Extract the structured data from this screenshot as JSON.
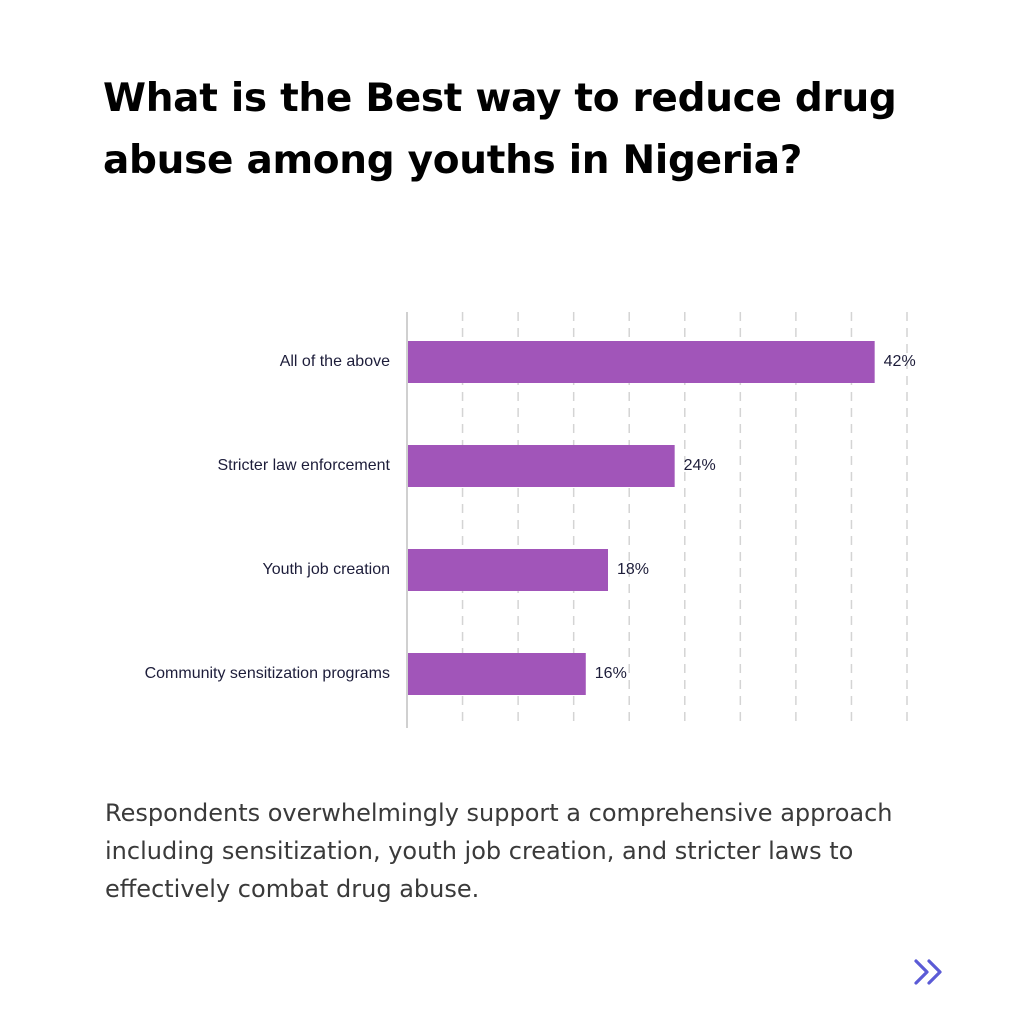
{
  "header": {
    "title": "What is the Best way to reduce drug abuse among youths in Nigeria?"
  },
  "chart_data": {
    "type": "bar",
    "orientation": "horizontal",
    "categories": [
      "All of the above",
      "Stricter law enforcement",
      "Youth job creation",
      "Community sensitization programs"
    ],
    "values": [
      42,
      24,
      18,
      16
    ],
    "value_labels": [
      "42%",
      "24%",
      "18%",
      "16%"
    ],
    "unit": "%",
    "xlim": [
      0,
      45
    ],
    "grid": true,
    "bar_color": "#a155b9"
  },
  "caption": {
    "text": "Respondents overwhelmingly support a comprehensive approach including sensitization, youth job creation, and stricter laws to effectively combat drug abuse."
  },
  "navigation": {
    "next_icon": "double-chevron-right-icon",
    "accent_color": "#5b5bd6"
  }
}
